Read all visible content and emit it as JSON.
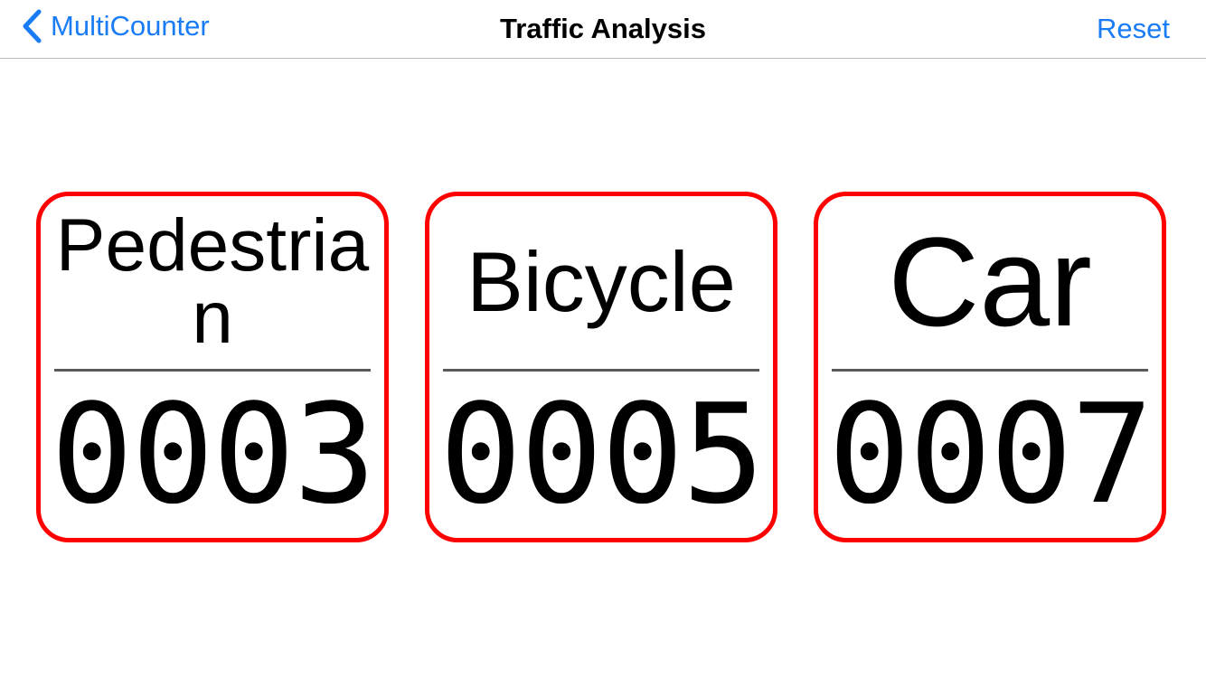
{
  "nav": {
    "back_label": "MultiCounter",
    "title": "Traffic Analysis",
    "reset_label": "Reset"
  },
  "accent_color": "#1a7cf5",
  "border_color": "#ff0000",
  "counters": [
    {
      "label": "Pedestrian",
      "count": "0003"
    },
    {
      "label": "Bicycle",
      "count": "0005"
    },
    {
      "label": "Car",
      "count": "0007"
    }
  ]
}
